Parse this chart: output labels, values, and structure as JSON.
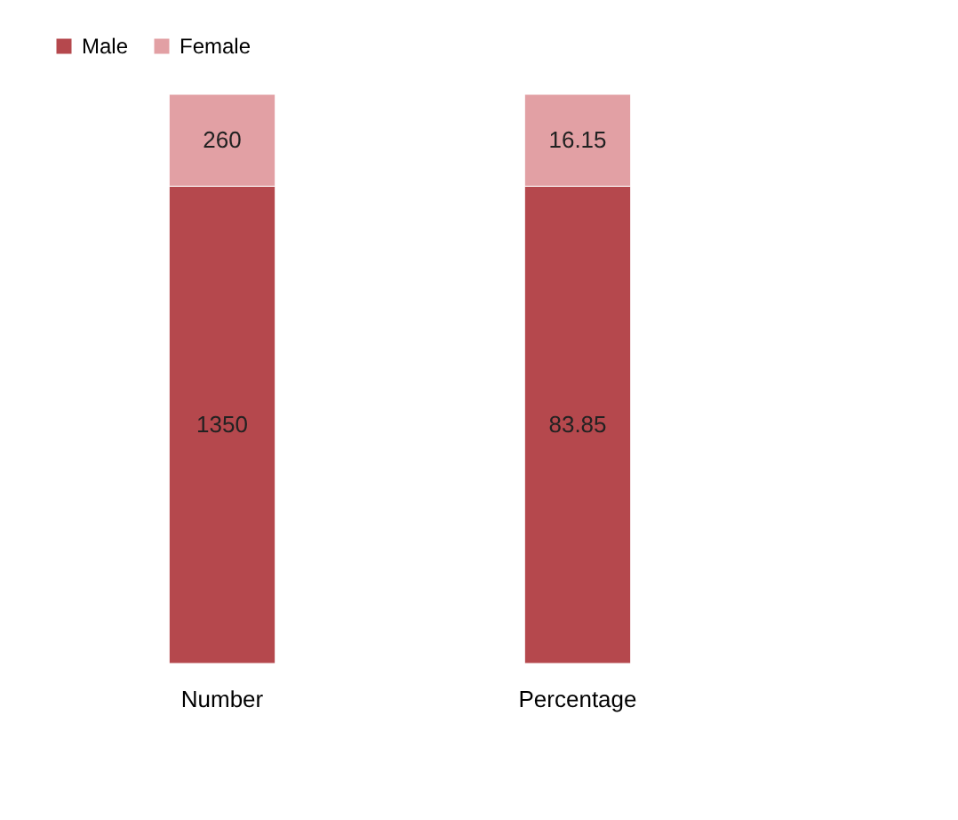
{
  "chart_data": [
    {
      "type": "bar",
      "stacked": true,
      "data_labels": true,
      "categories": [
        "Number"
      ],
      "ylim": [
        0,
        1610
      ],
      "series": [
        {
          "name": "Male",
          "color": "#b5484d",
          "values": [
            1350
          ]
        },
        {
          "name": "Female",
          "color": "#e2a0a4",
          "values": [
            260
          ]
        }
      ],
      "legend": "top",
      "grid": false
    },
    {
      "type": "bar",
      "stacked": true,
      "data_labels": true,
      "categories": [
        "Percentage"
      ],
      "ylim": [
        0,
        100
      ],
      "series": [
        {
          "name": "Male",
          "color": "#b5484d",
          "values": [
            83.85
          ]
        },
        {
          "name": "Female",
          "color": "#e2a0a4",
          "values": [
            16.15
          ]
        }
      ],
      "grid": false
    }
  ]
}
